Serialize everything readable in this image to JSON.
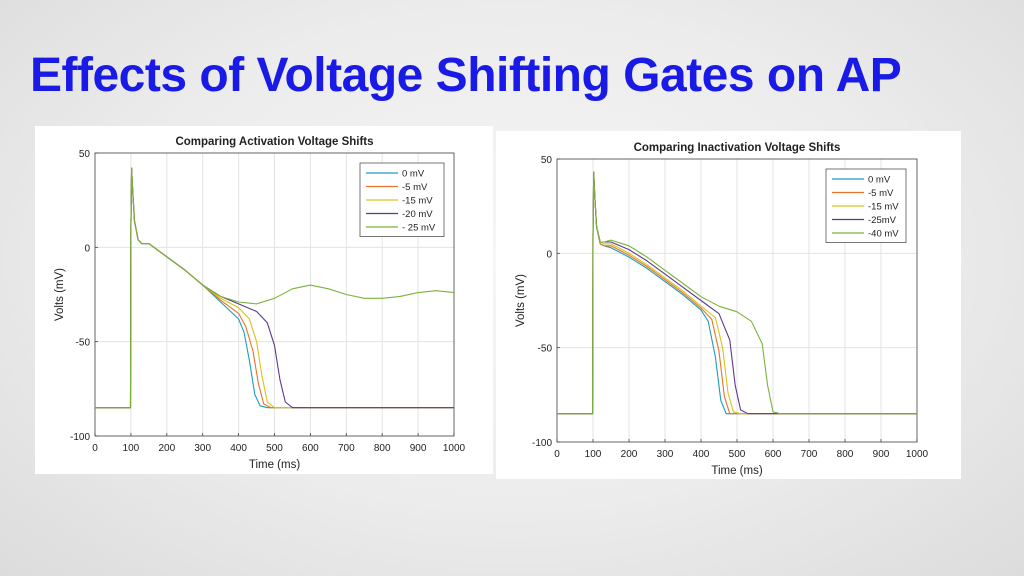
{
  "slide": {
    "title": "Effects of Voltage Shifting Gates on AP"
  },
  "colors": {
    "title": "#1a1ae6",
    "series": [
      "#1f9bbf",
      "#e8732a",
      "#d9c21a",
      "#5a3a8c",
      "#7ab33a"
    ]
  },
  "chart_data": [
    {
      "type": "line",
      "title": "Comparing Activation Voltage Shifts",
      "xlabel": "Time (ms)",
      "ylabel": "Volts (mV)",
      "xlim": [
        0,
        1000
      ],
      "ylim": [
        -100,
        50
      ],
      "xticks": [
        "0",
        "100",
        "200",
        "300",
        "400",
        "500",
        "600",
        "700",
        "800",
        "900",
        "1000"
      ],
      "yticks": [
        "50",
        "0",
        "-50",
        "-100"
      ],
      "grid": true,
      "legend_position": "top-right",
      "series": [
        {
          "name": "0 mV",
          "x": [
            0,
            99,
            100,
            102,
            105,
            110,
            120,
            130,
            150,
            200,
            250,
            300,
            350,
            400,
            415,
            430,
            445,
            460,
            480,
            500,
            1000
          ],
          "y": [
            -85,
            -85,
            10,
            42,
            30,
            14,
            4,
            2,
            2,
            -5,
            -12,
            -20,
            -29,
            -38,
            -45,
            -60,
            -78,
            -84,
            -85,
            -85,
            -85
          ]
        },
        {
          "name": "-5 mV",
          "x": [
            0,
            99,
            100,
            102,
            105,
            110,
            120,
            130,
            150,
            200,
            250,
            300,
            350,
            400,
            420,
            440,
            455,
            470,
            490,
            510,
            1000
          ],
          "y": [
            -85,
            -85,
            10,
            42,
            30,
            14,
            4,
            2,
            2,
            -5,
            -12,
            -20,
            -28,
            -35,
            -42,
            -55,
            -72,
            -83,
            -85,
            -85,
            -85
          ]
        },
        {
          "name": "-15 mV",
          "x": [
            0,
            99,
            100,
            102,
            105,
            110,
            120,
            130,
            150,
            200,
            250,
            300,
            350,
            400,
            430,
            450,
            465,
            480,
            500,
            520,
            1000
          ],
          "y": [
            -85,
            -85,
            10,
            42,
            30,
            14,
            4,
            2,
            2,
            -5,
            -12,
            -20,
            -27,
            -32,
            -38,
            -50,
            -68,
            -82,
            -85,
            -85,
            -85
          ]
        },
        {
          "name": "-20 mV",
          "x": [
            0,
            99,
            100,
            102,
            105,
            110,
            120,
            130,
            150,
            200,
            250,
            300,
            350,
            400,
            450,
            480,
            500,
            515,
            530,
            550,
            570,
            1000
          ],
          "y": [
            -85,
            -85,
            10,
            42,
            30,
            14,
            4,
            2,
            2,
            -5,
            -12,
            -20,
            -26,
            -30,
            -34,
            -40,
            -52,
            -70,
            -82,
            -85,
            -85,
            -85
          ]
        },
        {
          "name": "- 25 mV",
          "x": [
            0,
            99,
            100,
            102,
            105,
            110,
            120,
            130,
            150,
            200,
            250,
            300,
            350,
            400,
            450,
            500,
            550,
            600,
            650,
            700,
            750,
            800,
            850,
            900,
            950,
            1000
          ],
          "y": [
            -85,
            -85,
            10,
            42,
            30,
            14,
            4,
            2,
            2,
            -5,
            -12,
            -20,
            -26,
            -29,
            -30,
            -27,
            -22,
            -20,
            -22,
            -25,
            -27,
            -27,
            -26,
            -24,
            -23,
            -24
          ]
        }
      ]
    },
    {
      "type": "line",
      "title": "Comparing Inactivation Voltage Shifts",
      "xlabel": "Time (ms)",
      "ylabel": "Volts (mV)",
      "xlim": [
        0,
        1000
      ],
      "ylim": [
        -100,
        50
      ],
      "xticks": [
        "0",
        "100",
        "200",
        "300",
        "400",
        "500",
        "600",
        "700",
        "800",
        "900",
        "1000"
      ],
      "yticks": [
        "50",
        "0",
        "-50",
        "-100"
      ],
      "grid": true,
      "legend_position": "top-right",
      "series": [
        {
          "name": "0 mV",
          "x": [
            0,
            99,
            100,
            102,
            105,
            110,
            120,
            130,
            150,
            200,
            250,
            300,
            350,
            400,
            420,
            440,
            455,
            470,
            490,
            1000
          ],
          "y": [
            -85,
            -85,
            10,
            43,
            30,
            14,
            5,
            4,
            3,
            -2,
            -8,
            -15,
            -22,
            -30,
            -36,
            -55,
            -78,
            -85,
            -85,
            -85
          ]
        },
        {
          "name": "-5 mV",
          "x": [
            0,
            99,
            100,
            102,
            105,
            110,
            120,
            130,
            150,
            200,
            250,
            300,
            350,
            400,
            430,
            450,
            465,
            480,
            500,
            1000
          ],
          "y": [
            -85,
            -85,
            10,
            43,
            30,
            14,
            5,
            4,
            4,
            -1,
            -7,
            -14,
            -21,
            -29,
            -35,
            -52,
            -76,
            -85,
            -85,
            -85
          ]
        },
        {
          "name": "-15 mV",
          "x": [
            0,
            99,
            100,
            102,
            105,
            110,
            120,
            130,
            150,
            200,
            250,
            300,
            350,
            400,
            440,
            460,
            475,
            490,
            510,
            1000
          ],
          "y": [
            -85,
            -85,
            10,
            43,
            30,
            14,
            6,
            5,
            5,
            0,
            -6,
            -13,
            -20,
            -28,
            -34,
            -50,
            -74,
            -84,
            -85,
            -85
          ]
        },
        {
          "name": "-25mV",
          "x": [
            0,
            99,
            100,
            102,
            105,
            110,
            120,
            130,
            150,
            200,
            250,
            300,
            350,
            400,
            450,
            480,
            495,
            510,
            530,
            1000
          ],
          "y": [
            -85,
            -85,
            10,
            43,
            30,
            14,
            6,
            6,
            6,
            2,
            -4,
            -11,
            -18,
            -25,
            -32,
            -46,
            -70,
            -83,
            -85,
            -85
          ]
        },
        {
          "name": "-40 mV",
          "x": [
            0,
            99,
            100,
            102,
            105,
            110,
            120,
            130,
            150,
            200,
            250,
            300,
            350,
            400,
            450,
            500,
            540,
            570,
            585,
            600,
            620,
            1000
          ],
          "y": [
            -85,
            -85,
            10,
            43,
            30,
            14,
            6,
            6,
            7,
            4,
            -2,
            -9,
            -16,
            -23,
            -28,
            -31,
            -36,
            -48,
            -70,
            -84,
            -85,
            -85
          ]
        }
      ]
    }
  ]
}
